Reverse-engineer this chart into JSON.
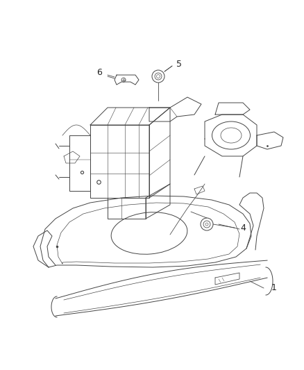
{
  "background_color": "#ffffff",
  "line_color": "#444444",
  "label_color": "#222222",
  "figsize": [
    4.38,
    5.33
  ],
  "dpi": 100,
  "label_fontsize": 9,
  "leader_lw": 0.6,
  "part_lw": 0.7
}
